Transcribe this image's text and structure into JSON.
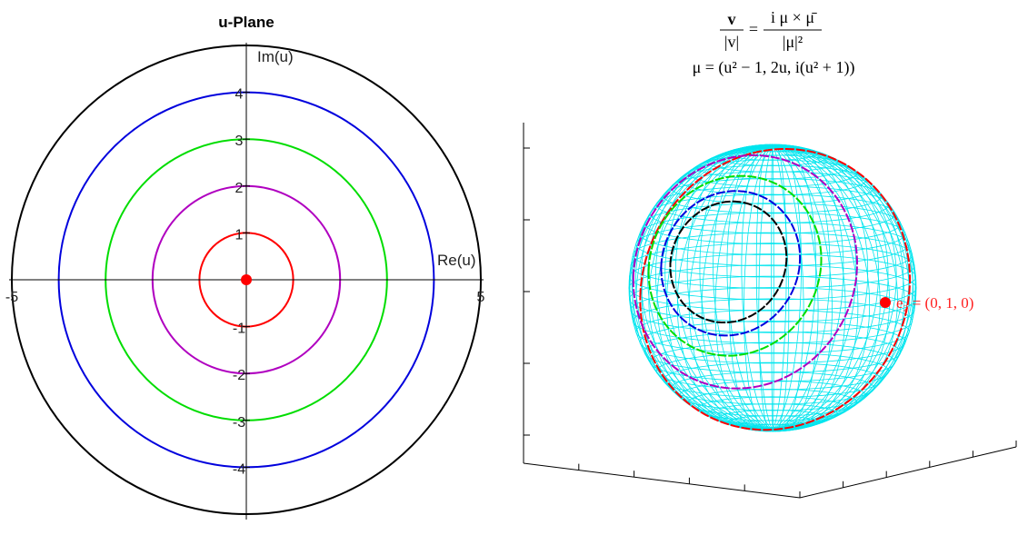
{
  "chart_data": [
    {
      "type": "line",
      "title": "u-Plane",
      "xlabel": "Re(u)",
      "ylabel": "Im(u)",
      "xlim": [
        -5,
        5
      ],
      "ylim": [
        -5,
        5
      ],
      "x_ticks": [
        "-5",
        "5"
      ],
      "y_ticks": [
        "4",
        "3",
        "2",
        "1",
        "-1",
        "-2",
        "-3",
        "-4"
      ],
      "grid": false,
      "series": [
        {
          "radius": 1,
          "color": "#ff0000"
        },
        {
          "radius": 2,
          "color": "#b000c0"
        },
        {
          "radius": 3,
          "color": "#00dd00"
        },
        {
          "radius": 4,
          "color": "#0000dd"
        },
        {
          "radius": 5,
          "color": "#000000"
        }
      ],
      "marker": {
        "x": 0,
        "y": 0,
        "color": "#ff0000"
      }
    },
    {
      "type": "line",
      "title_lines": [
        "v/|v| = i μ × μ̄ / |μ|²",
        "μ = (u² − 1, 2u, i(u² + 1))"
      ],
      "sphere_color": "#00e5ee",
      "series": [
        {
          "u_radius": 1,
          "color": "#ff0000"
        },
        {
          "u_radius": 2,
          "color": "#b000c0"
        },
        {
          "u_radius": 3,
          "color": "#00dd00"
        },
        {
          "u_radius": 4,
          "color": "#0000dd"
        },
        {
          "u_radius": 5,
          "color": "#000000"
        }
      ],
      "point": {
        "label": "e₂ = (0, 1, 0)",
        "color": "#ff0000"
      }
    }
  ],
  "equation": {
    "frac1_num": "v",
    "frac1_den": "|v|",
    "eq_sign": "=",
    "frac2_num": "i μ × μ̄",
    "frac2_den": "|μ|²",
    "line2": "μ = (u² − 1, 2u, i(u² + 1))"
  },
  "e2_text": "e₂ = (0, 1, 0)"
}
